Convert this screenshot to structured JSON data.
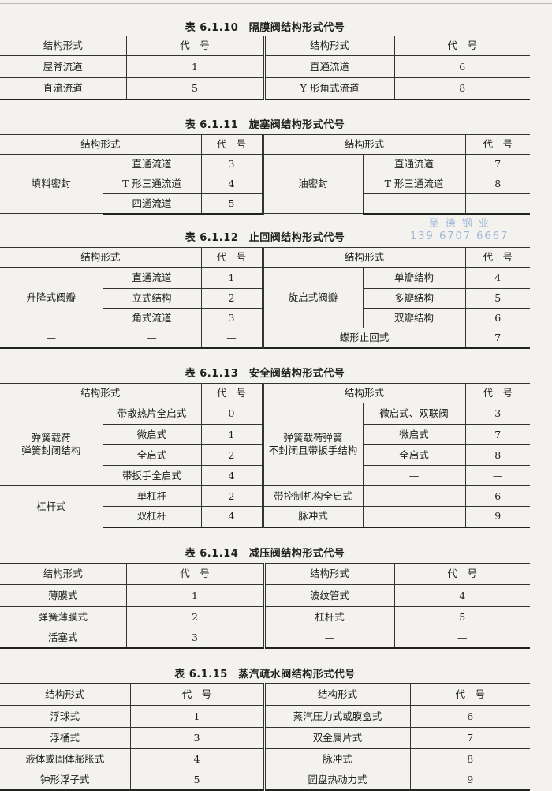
{
  "watermark": {
    "line1": "至 德 钢 业",
    "line2": "139 6707 6667"
  },
  "tables": [
    {
      "title": "表 6.1.10　隔膜阀结构形式代号",
      "rows": [
        [
          {
            "t": "结构形式"
          },
          {
            "t": "代　号"
          },
          {
            "t": "结构形式",
            "mid": true
          },
          {
            "t": "代　号"
          }
        ],
        [
          {
            "t": "屋脊流道"
          },
          {
            "t": "1"
          },
          {
            "t": "直通流道",
            "mid": true
          },
          {
            "t": "6"
          }
        ],
        [
          {
            "t": "直流流道"
          },
          {
            "t": "5"
          },
          {
            "t": "Y 形角式流道",
            "mid": true
          },
          {
            "t": "8"
          }
        ]
      ]
    },
    {
      "title": "表 6.1.11　旋塞阀结构形式代号",
      "rows": [
        [
          {
            "t": "结构形式",
            "cs": 2
          },
          {
            "t": "代　号"
          },
          {
            "t": "结构形式",
            "cs": 2,
            "mid": true
          },
          {
            "t": "代　号"
          }
        ],
        [
          {
            "t": "填料密封",
            "rs": 3
          },
          {
            "t": "直通流道"
          },
          {
            "t": "3"
          },
          {
            "t": "油密封",
            "rs": 3,
            "mid": true
          },
          {
            "t": "直通流道"
          },
          {
            "t": "7"
          }
        ],
        [
          {
            "t": "T 形三通流道"
          },
          {
            "t": "4"
          },
          {
            "t": "T 形三通流道"
          },
          {
            "t": "8"
          }
        ],
        [
          {
            "t": "四通流道"
          },
          {
            "t": "5"
          },
          {
            "t": "—"
          },
          {
            "t": "—"
          }
        ]
      ]
    },
    {
      "title": "表 6.1.12　止回阀结构形式代号",
      "rows": [
        [
          {
            "t": "结构形式",
            "cs": 2
          },
          {
            "t": "代　号"
          },
          {
            "t": "结构形式",
            "cs": 2,
            "mid": true
          },
          {
            "t": "代　号"
          }
        ],
        [
          {
            "t": "升降式阀瓣",
            "rs": 3
          },
          {
            "t": "直通流道"
          },
          {
            "t": "1"
          },
          {
            "t": "旋启式阀瓣",
            "rs": 3,
            "mid": true
          },
          {
            "t": "单瓣结构"
          },
          {
            "t": "4"
          }
        ],
        [
          {
            "t": "立式结构"
          },
          {
            "t": "2"
          },
          {
            "t": "多瓣结构"
          },
          {
            "t": "5"
          }
        ],
        [
          {
            "t": "角式流道"
          },
          {
            "t": "3"
          },
          {
            "t": "双瓣结构"
          },
          {
            "t": "6"
          }
        ],
        [
          {
            "t": "—"
          },
          {
            "t": "—"
          },
          {
            "t": "—"
          },
          {
            "t": "蝶形止回式",
            "cs": 2,
            "mid": true
          },
          {
            "t": "7"
          }
        ]
      ]
    },
    {
      "title": "表 6.1.13　安全阀结构形式代号",
      "rows": [
        [
          {
            "t": "结构形式",
            "cs": 2
          },
          {
            "t": "代　号"
          },
          {
            "t": "结构形式",
            "cs": 2,
            "mid": true
          },
          {
            "t": "代　号"
          }
        ],
        [
          {
            "t": "弹簧载荷\n弹簧封闭结构",
            "rs": 4
          },
          {
            "t": "带散热片全启式"
          },
          {
            "t": "0"
          },
          {
            "t": "弹簧载荷弹簧\n不封闭且带扳手结构",
            "rs": 4,
            "mid": true
          },
          {
            "t": "微启式、双联阀"
          },
          {
            "t": "3"
          }
        ],
        [
          {
            "t": "微启式"
          },
          {
            "t": "1"
          },
          {
            "t": "微启式"
          },
          {
            "t": "7"
          }
        ],
        [
          {
            "t": "全启式"
          },
          {
            "t": "2"
          },
          {
            "t": "全启式"
          },
          {
            "t": "8"
          }
        ],
        [
          {
            "t": "带扳手全启式"
          },
          {
            "t": "4"
          },
          {
            "t": "—"
          },
          {
            "t": "—"
          }
        ],
        [
          {
            "t": "杠杆式",
            "rs": 2
          },
          {
            "t": "单杠杆"
          },
          {
            "t": "2"
          },
          {
            "t": "带控制机构全启式",
            "mid": true
          },
          {
            "t": ""
          },
          {
            "t": "6"
          }
        ],
        [
          {
            "t": "双杠杆"
          },
          {
            "t": "4"
          },
          {
            "t": "脉冲式",
            "mid": true
          },
          {
            "t": ""
          },
          {
            "t": "9"
          }
        ]
      ]
    },
    {
      "title": "表 6.1.14　减压阀结构形式代号",
      "rows": [
        [
          {
            "t": "结构形式"
          },
          {
            "t": "代　号"
          },
          {
            "t": "结构形式",
            "mid": true
          },
          {
            "t": "代　号"
          }
        ],
        [
          {
            "t": "薄膜式"
          },
          {
            "t": "1"
          },
          {
            "t": "波纹管式",
            "mid": true
          },
          {
            "t": "4"
          }
        ],
        [
          {
            "t": "弹簧薄膜式"
          },
          {
            "t": "2"
          },
          {
            "t": "杠杆式",
            "mid": true
          },
          {
            "t": "5"
          }
        ],
        [
          {
            "t": "活塞式"
          },
          {
            "t": "3"
          },
          {
            "t": "—",
            "mid": true
          },
          {
            "t": "—"
          }
        ]
      ]
    },
    {
      "title": "表 6.1.15　蒸汽疏水阀结构形式代号",
      "rows": [
        [
          {
            "t": "结构形式"
          },
          {
            "t": "代　号"
          },
          {
            "t": "结构形式",
            "mid": true
          },
          {
            "t": "代　号"
          }
        ],
        [
          {
            "t": "浮球式"
          },
          {
            "t": "1"
          },
          {
            "t": "蒸汽压力式或膜盒式",
            "mid": true
          },
          {
            "t": "6"
          }
        ],
        [
          {
            "t": "浮桶式"
          },
          {
            "t": "3"
          },
          {
            "t": "双金属片式",
            "mid": true
          },
          {
            "t": "7"
          }
        ],
        [
          {
            "t": "液体或固体膨胀式"
          },
          {
            "t": "4"
          },
          {
            "t": "脉冲式",
            "mid": true
          },
          {
            "t": "8"
          }
        ],
        [
          {
            "t": "钟形浮子式"
          },
          {
            "t": "5"
          },
          {
            "t": "圆盘热动力式",
            "mid": true
          },
          {
            "t": "9"
          }
        ]
      ]
    }
  ]
}
